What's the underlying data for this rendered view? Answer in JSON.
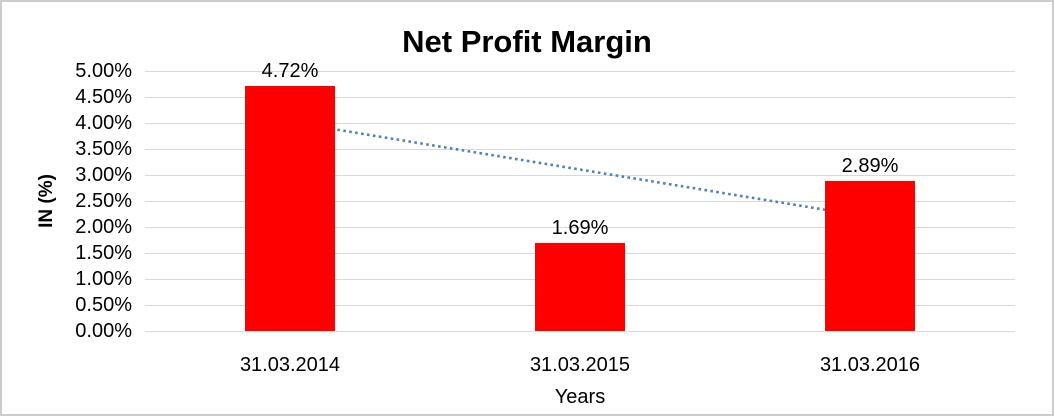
{
  "window": {
    "background_color": "#ffffff",
    "border_color": "#cccccc"
  },
  "chart_data": {
    "type": "bar",
    "title": "Net Profit Margin",
    "xlabel": "Years",
    "ylabel": "IN (%)",
    "categories": [
      "31.03.2014",
      "31.03.2015",
      "31.03.2016"
    ],
    "series": [
      {
        "name": "Net Profit Margin",
        "values": [
          4.72,
          1.69,
          2.89
        ],
        "color": "#ff0000"
      }
    ],
    "data_labels": [
      "4.72%",
      "1.69%",
      "2.89%"
    ],
    "ylim": [
      0,
      5
    ],
    "ytick_step": 0.5,
    "ytick_labels_top_to_bottom": [
      "5.00%",
      "4.50%",
      "4.00%",
      "3.50%",
      "3.00%",
      "2.50%",
      "2.00%",
      "1.50%",
      "1.00%",
      "0.50%",
      "0.00%"
    ],
    "grid": true,
    "gridline_color": "#d9d9d9",
    "legend_position": "none",
    "trendline": {
      "type": "linear",
      "style": "dotted",
      "color": "#4f81bd",
      "start_value": 4.02,
      "end_value": 2.19
    }
  }
}
